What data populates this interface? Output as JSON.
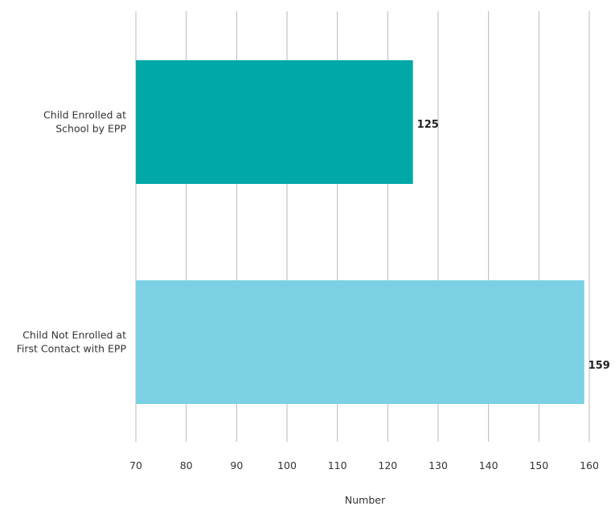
{
  "chart_data": {
    "type": "bar",
    "orientation": "horizontal",
    "categories": [
      [
        "Child Enrolled at",
        "School by EPP"
      ],
      [
        "Child Not Enrolled at",
        "First Contact with EPP"
      ]
    ],
    "values": [
      125,
      159
    ],
    "value_labels": [
      "125",
      "159"
    ],
    "colors": [
      "#00a9a8",
      "#7bd1e3"
    ],
    "xlabel": "Number",
    "xlim": [
      70,
      160
    ],
    "xticks": [
      70,
      80,
      90,
      100,
      110,
      120,
      130,
      140,
      150,
      160
    ],
    "grid": true,
    "legend": "none"
  }
}
